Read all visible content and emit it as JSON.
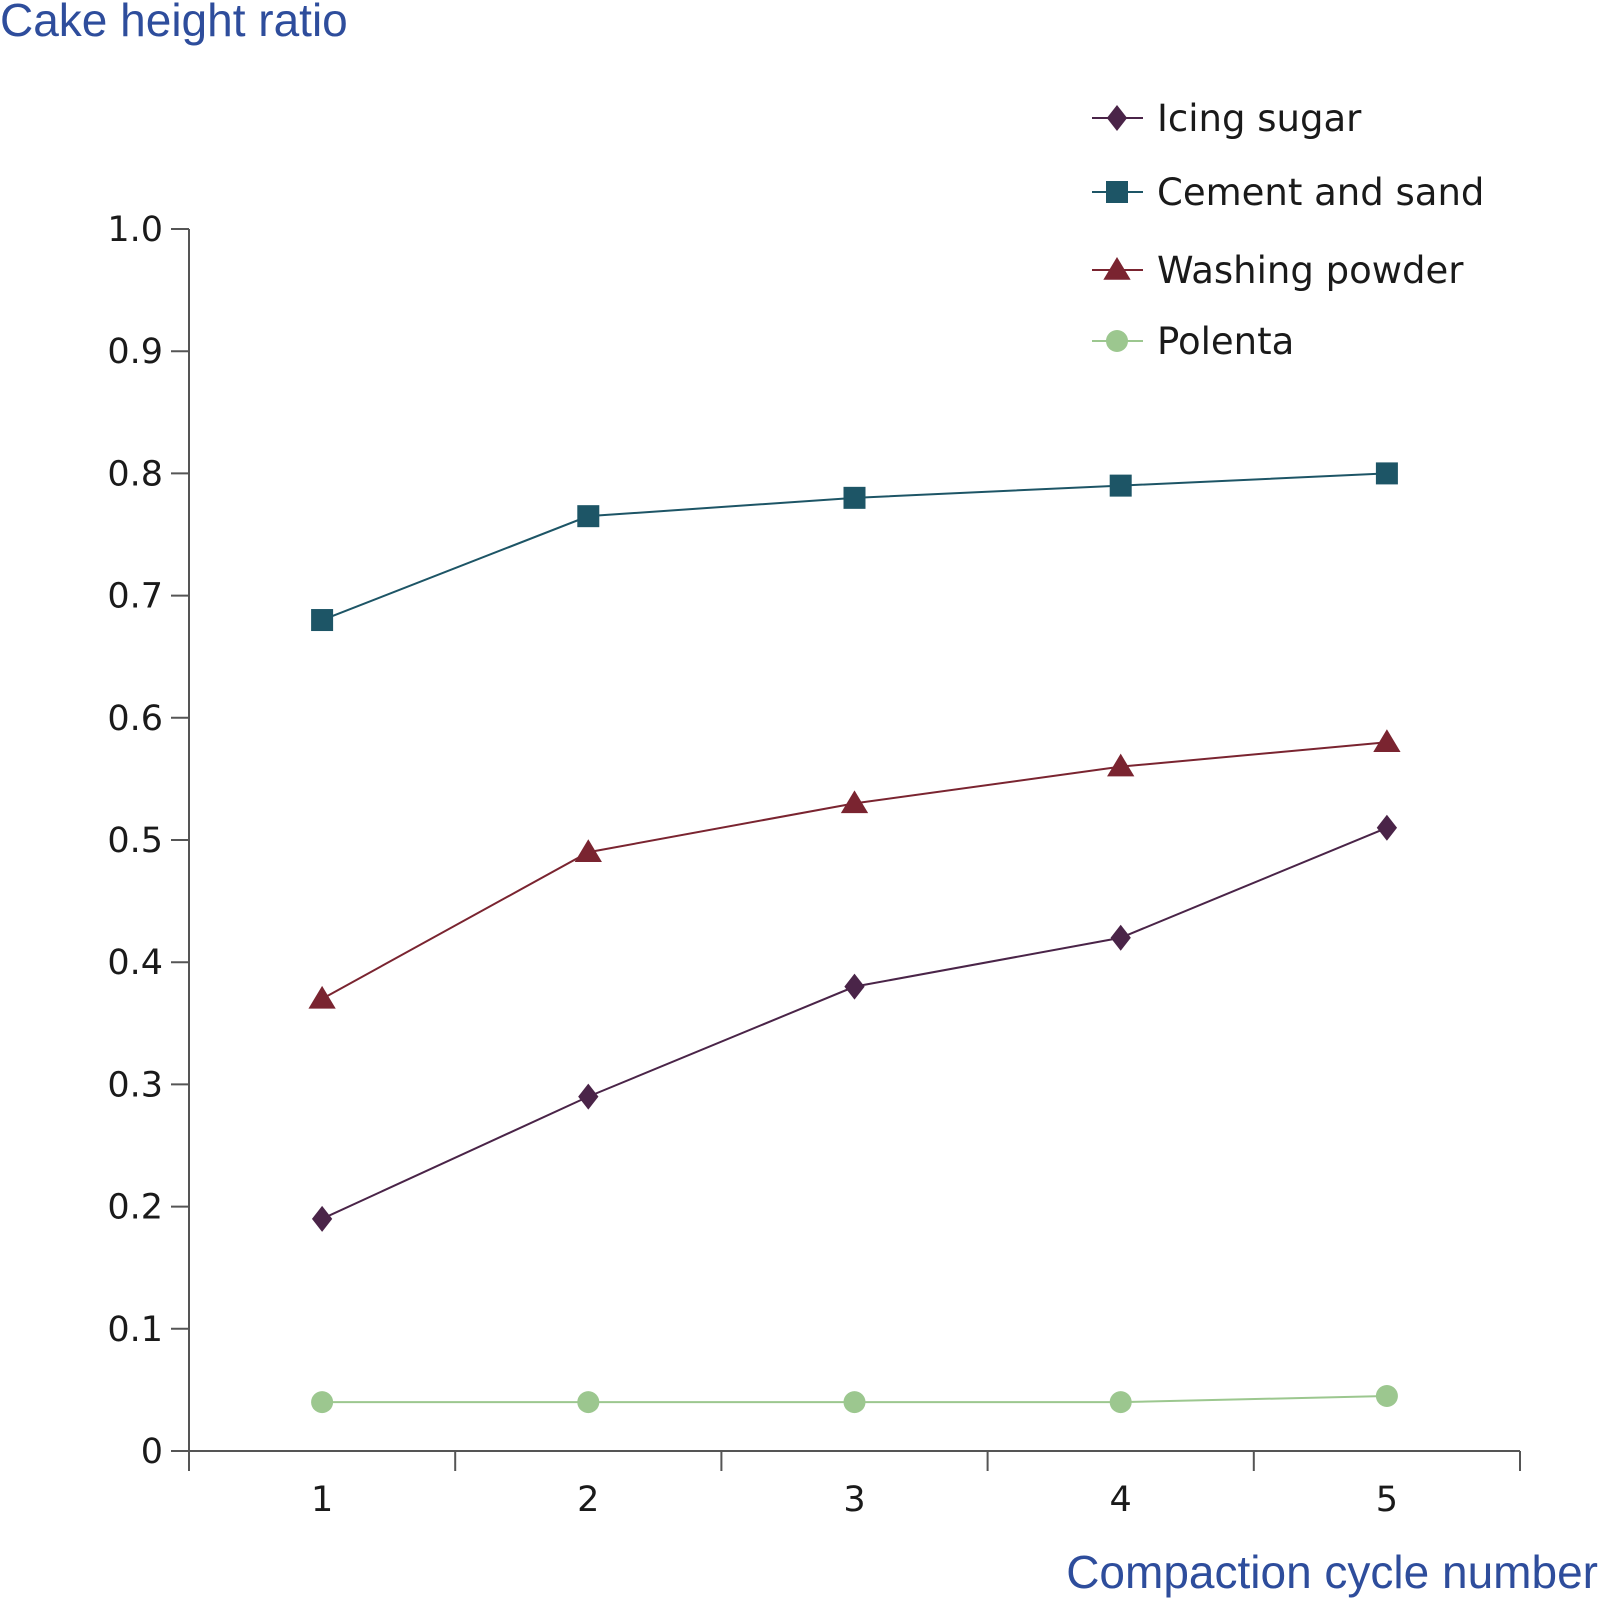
{
  "chart_data": {
    "type": "line",
    "ylabel": "Cake height ratio",
    "xlabel": "Compaction cycle number",
    "x": [
      1,
      2,
      3,
      4,
      5
    ],
    "x_tick_labels": [
      "1",
      "2",
      "3",
      "4",
      "5"
    ],
    "y_tick_labels": [
      "0",
      "0.1",
      "0.2",
      "0.3",
      "0.4",
      "0.5",
      "0.6",
      "0.7",
      "0.8",
      "0.9",
      "1.0"
    ],
    "ylim": [
      0,
      1.0
    ],
    "xlim": [
      0.5,
      5.5
    ],
    "grid": false,
    "legend_position": "top-right",
    "series": [
      {
        "name": "Icing sugar",
        "marker": "diamond",
        "color": "#4a2448",
        "values": [
          0.19,
          0.29,
          0.38,
          0.42,
          0.51
        ]
      },
      {
        "name": "Cement and sand",
        "marker": "square",
        "color": "#1d5566",
        "values": [
          0.68,
          0.765,
          0.78,
          0.79,
          0.8
        ]
      },
      {
        "name": "Washing powder",
        "marker": "triangle",
        "color": "#7a2430",
        "values": [
          0.37,
          0.49,
          0.53,
          0.56,
          0.58
        ]
      },
      {
        "name": "Polenta",
        "marker": "circle",
        "color": "#9cc78f",
        "values": [
          0.04,
          0.04,
          0.04,
          0.04,
          0.045
        ]
      }
    ]
  }
}
